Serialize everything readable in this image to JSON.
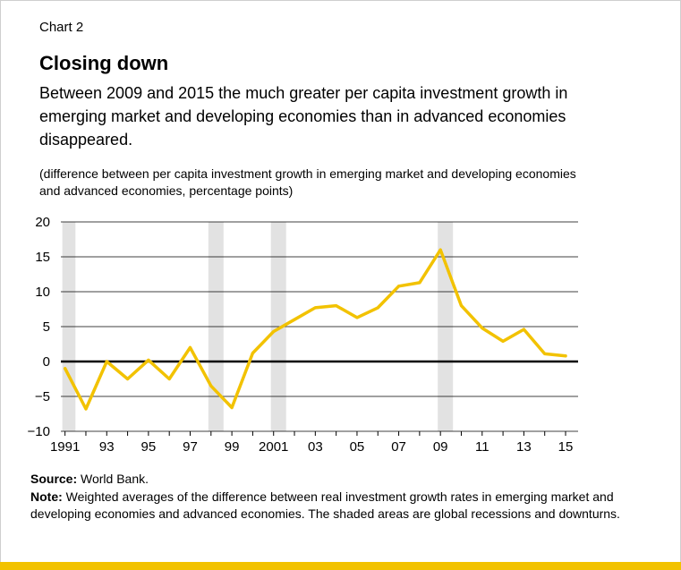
{
  "header": {
    "label": "Chart 2",
    "title": "Closing down",
    "subtitle": "Between 2009 and 2015 the much greater per capita investment growth in emerging market and developing economies than in advanced economies disappeared.",
    "units": "(difference between per capita investment growth in emerging market and developing economies and advanced economies, percentage points)"
  },
  "footer": {
    "source_label": "Source:",
    "source_text": " World Bank.",
    "note_label": "Note:",
    "note_text": " Weighted averages of the difference between real investment growth rates in emerging market and developing economies and advanced economies. The shaded areas are global recessions and downturns."
  },
  "colors": {
    "line": "#f2c200",
    "shade": "#e2e2e2",
    "accent_bar": "#f2c200"
  },
  "chart_data": {
    "type": "line",
    "x": [
      1991,
      1992,
      1993,
      1994,
      1995,
      1996,
      1997,
      1998,
      1999,
      2000,
      2001,
      2002,
      2003,
      2004,
      2005,
      2006,
      2007,
      2008,
      2009,
      2010,
      2011,
      2012,
      2013,
      2014,
      2015
    ],
    "series": [
      {
        "values": [
          -1,
          -6.8,
          0,
          -2.5,
          0.2,
          -2.5,
          2,
          -3.5,
          -6.6,
          1.2,
          4.3,
          6,
          7.7,
          8,
          6.3,
          7.7,
          10.8,
          11.3,
          16,
          8,
          4.8,
          2.9,
          4.6,
          1.1,
          0.8
        ]
      }
    ],
    "x_tick_labels": [
      "1991",
      "93",
      "95",
      "97",
      "99",
      "2001",
      "03",
      "05",
      "07",
      "09",
      "11",
      "13",
      "15"
    ],
    "y_tick_labels": [
      "20",
      "15",
      "10",
      "5",
      "0",
      "−5",
      "−10"
    ],
    "ylim": [
      -10,
      20
    ],
    "xlim": [
      1990.8,
      2015.6
    ],
    "y_ticks": [
      20,
      15,
      10,
      5,
      0,
      -5,
      -10
    ],
    "x_ticks": [
      1991,
      1993,
      1995,
      1997,
      1999,
      2001,
      2003,
      2005,
      2007,
      2009,
      2011,
      2013,
      2015
    ],
    "shaded_periods": [
      [
        1991,
        1991.5
      ],
      [
        1998,
        1998.6
      ],
      [
        2001,
        2001.6
      ],
      [
        2009,
        2009.6
      ]
    ],
    "grid": true,
    "zero_line_bold": true
  }
}
